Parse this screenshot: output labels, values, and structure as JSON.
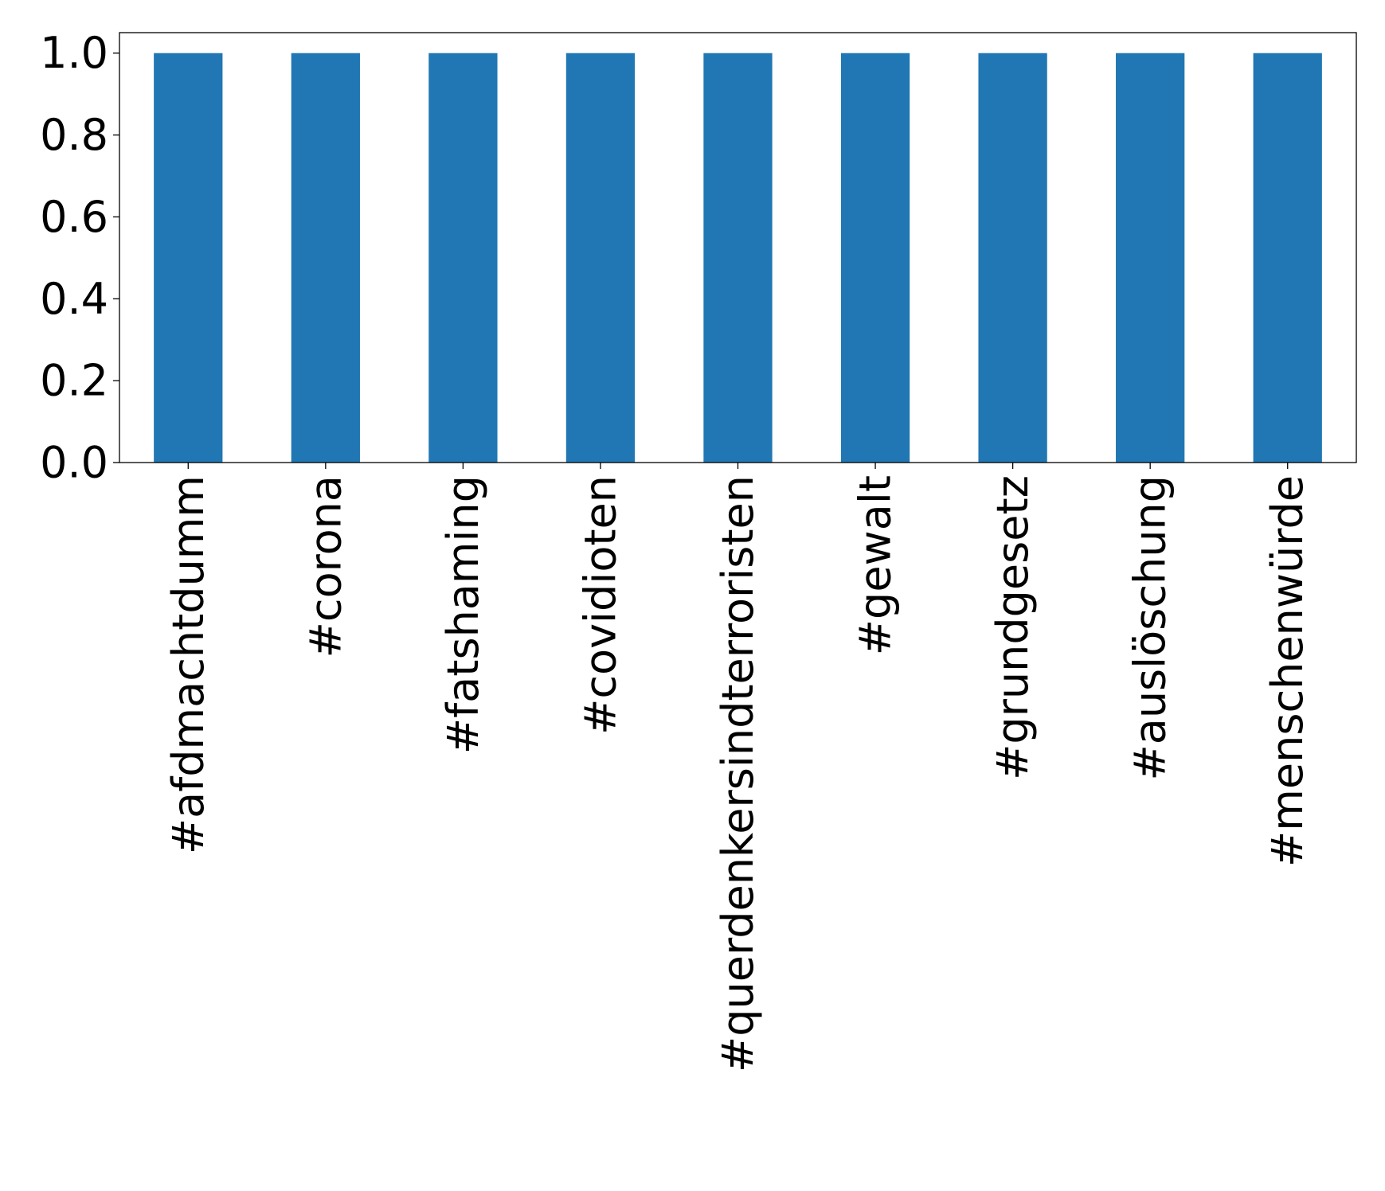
{
  "chart_data": {
    "type": "bar",
    "title": "",
    "xlabel": "",
    "ylabel": "",
    "categories": [
      "#afdmachtdumm",
      "#corona",
      "#fatshaming",
      "#covidioten",
      "#querdenkersindterroristen",
      "#gewalt",
      "#grundgesetz",
      "#auslöschung",
      "#menschenwürde"
    ],
    "values": [
      1.0,
      1.0,
      1.0,
      1.0,
      1.0,
      1.0,
      1.0,
      1.0,
      1.0
    ],
    "ylim": [
      0,
      1.05
    ],
    "yticks": [
      "0.0",
      "0.2",
      "0.4",
      "0.6",
      "0.8",
      "1.0"
    ],
    "grid": false,
    "legend": "none",
    "bar_color": "#2077b4"
  }
}
